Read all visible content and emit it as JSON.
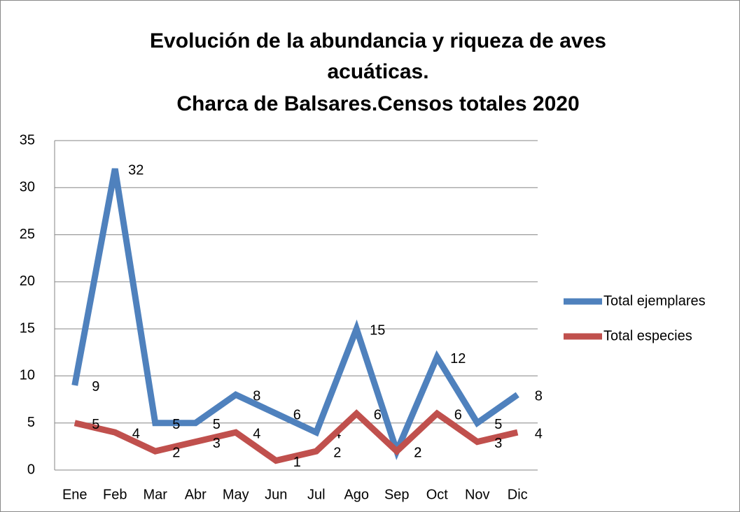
{
  "chart_data": {
    "type": "line",
    "title": [
      "Evolución de la abundancia y riqueza de aves",
      "acuáticas.",
      "Charca de Balsares.Censos totales 2020"
    ],
    "categories": [
      "Ene",
      "Feb",
      "Mar",
      "Abr",
      "May",
      "Jun",
      "Jul",
      "Ago",
      "Sep",
      "Oct",
      "Nov",
      "Dic"
    ],
    "series": [
      {
        "name": "Total ejemplares",
        "color": "#4f81bd",
        "values": [
          9,
          32,
          5,
          5,
          8,
          6,
          4,
          15,
          2,
          12,
          5,
          8
        ]
      },
      {
        "name": "Total especies",
        "color": "#c0504d",
        "values": [
          5,
          4,
          2,
          3,
          4,
          1,
          2,
          6,
          2,
          6,
          3,
          4
        ]
      }
    ],
    "ylim": [
      0,
      35
    ],
    "yticks": [
      0,
      5,
      10,
      15,
      20,
      25,
      30,
      35
    ],
    "grid": true,
    "legend": "right",
    "data_labels": true
  }
}
